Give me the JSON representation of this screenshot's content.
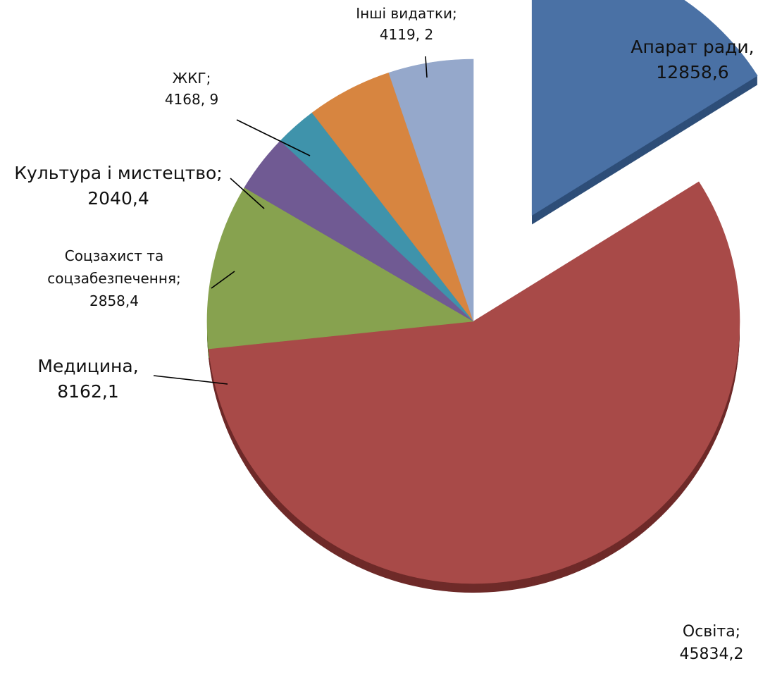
{
  "chart_data": {
    "type": "pie",
    "exploded": true,
    "three_d": true,
    "categories": [
      "Апарат ради",
      "Освіта",
      "Медицина",
      "Соцзахист та соцзабезпечення",
      "Культура і мистецтво",
      "ЖКГ",
      "Інші видатки"
    ],
    "values": [
      12858.6,
      45834.2,
      8162.1,
      2858.4,
      2040.4,
      4168.9,
      4119.2
    ],
    "colors": [
      "#4A71A5",
      "#A84A48",
      "#87A24F",
      "#705A93",
      "#3F93AB",
      "#D78540",
      "#95A8CB"
    ],
    "side_colors": [
      "#2E4E78",
      "#6E2A29",
      "#5C7530",
      "#4B3A66",
      "#266478",
      "#8F4F1C",
      "#3F5A82"
    ],
    "labels": [
      [
        "Апарат ради,",
        "12858,6"
      ],
      [
        "Освіта;",
        "45834,2"
      ],
      [
        "Медицина,",
        "8162,1"
      ],
      [
        "Соцзахист та",
        "соцзабезпечення;",
        "2858,4"
      ],
      [
        "Культура і мистецтво;",
        "2040,4"
      ],
      [
        "ЖКГ;",
        "4168, 9"
      ],
      [
        "Інші видатки;",
        "4119, 2"
      ]
    ],
    "legend": "none"
  }
}
